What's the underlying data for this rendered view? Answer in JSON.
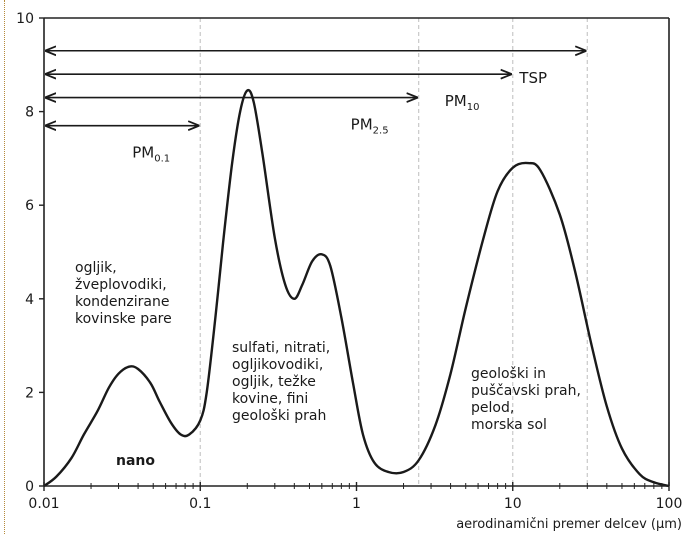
{
  "chart_data": {
    "type": "line",
    "xscale": "log",
    "xlim": [
      0.01,
      100
    ],
    "ylim": [
      0,
      10
    ],
    "xlabel": "aerodinamični premer delcev (µm)",
    "ylabel": "",
    "grid": false,
    "x_ticks": [
      {
        "value": 0.01,
        "label": "0.01"
      },
      {
        "value": 0.1,
        "label": "0.1"
      },
      {
        "value": 1,
        "label": "1"
      },
      {
        "value": 10,
        "label": "10"
      },
      {
        "value": 100,
        "label": "100"
      }
    ],
    "y_ticks": [
      {
        "value": 0,
        "label": "0"
      },
      {
        "value": 2,
        "label": "2"
      },
      {
        "value": 4,
        "label": "4"
      },
      {
        "value": 6,
        "label": "6"
      },
      {
        "value": 8,
        "label": "8"
      },
      {
        "value": 10,
        "label": "10"
      }
    ],
    "series": [
      {
        "points": [
          [
            0.01,
            0.0
          ],
          [
            0.012,
            0.2
          ],
          [
            0.015,
            0.6
          ],
          [
            0.018,
            1.1
          ],
          [
            0.022,
            1.6
          ],
          [
            0.026,
            2.1
          ],
          [
            0.03,
            2.4
          ],
          [
            0.035,
            2.55
          ],
          [
            0.04,
            2.5
          ],
          [
            0.048,
            2.2
          ],
          [
            0.055,
            1.8
          ],
          [
            0.065,
            1.35
          ],
          [
            0.075,
            1.1
          ],
          [
            0.085,
            1.1
          ],
          [
            0.1,
            1.4
          ],
          [
            0.11,
            2.0
          ],
          [
            0.125,
            3.6
          ],
          [
            0.14,
            5.2
          ],
          [
            0.16,
            6.9
          ],
          [
            0.18,
            8.0
          ],
          [
            0.2,
            8.45
          ],
          [
            0.22,
            8.2
          ],
          [
            0.25,
            7.1
          ],
          [
            0.3,
            5.3
          ],
          [
            0.35,
            4.3
          ],
          [
            0.4,
            4.0
          ],
          [
            0.45,
            4.3
          ],
          [
            0.52,
            4.8
          ],
          [
            0.6,
            4.95
          ],
          [
            0.68,
            4.7
          ],
          [
            0.8,
            3.6
          ],
          [
            0.95,
            2.2
          ],
          [
            1.1,
            1.1
          ],
          [
            1.3,
            0.5
          ],
          [
            1.6,
            0.3
          ],
          [
            2.0,
            0.3
          ],
          [
            2.5,
            0.55
          ],
          [
            3.2,
            1.3
          ],
          [
            4.0,
            2.4
          ],
          [
            5.0,
            3.8
          ],
          [
            6.5,
            5.3
          ],
          [
            8.0,
            6.3
          ],
          [
            10,
            6.8
          ],
          [
            12.5,
            6.9
          ],
          [
            15,
            6.75
          ],
          [
            20,
            5.8
          ],
          [
            25,
            4.6
          ],
          [
            32,
            3.0
          ],
          [
            40,
            1.7
          ],
          [
            50,
            0.8
          ],
          [
            65,
            0.25
          ],
          [
            80,
            0.08
          ],
          [
            100,
            0.0
          ]
        ]
      }
    ],
    "cutoffs": [
      0.1,
      2.5,
      10,
      30
    ],
    "size_classes": [
      {
        "label": "TSP",
        "sub": "",
        "start": 0.01,
        "end": 30,
        "y": 9.3
      },
      {
        "label": "PM",
        "sub": "10",
        "start": 0.01,
        "end": 10,
        "y": 8.8
      },
      {
        "label": "PM",
        "sub": "2.5",
        "start": 0.01,
        "end": 2.5,
        "y": 8.3
      },
      {
        "label": "PM",
        "sub": "0.1",
        "start": 0.01,
        "end": 0.1,
        "y": 7.7
      }
    ],
    "annotations": [
      {
        "name": "annotation-fine-sources",
        "lines": [
          "ogljik,",
          "žveplovodiki,",
          "kondenzirane",
          "kovinske pare"
        ]
      },
      {
        "name": "annotation-nano",
        "lines": [
          "nano"
        ],
        "bold": true
      },
      {
        "name": "annotation-accumulation-sources",
        "lines": [
          "sulfati, nitrati,",
          "ogljikovodiki,",
          "ogljik, težke",
          "kovine, fini",
          "geološki prah"
        ]
      },
      {
        "name": "annotation-coarse-sources",
        "lines": [
          "geološki in",
          "puščavski prah,",
          "pelod,",
          "morska sol"
        ]
      }
    ],
    "colors": {
      "curve": "#1a1a1a",
      "axis": "#222222",
      "cutoff": "#c8c8c8",
      "arrow": "#1a1a1a"
    }
  }
}
